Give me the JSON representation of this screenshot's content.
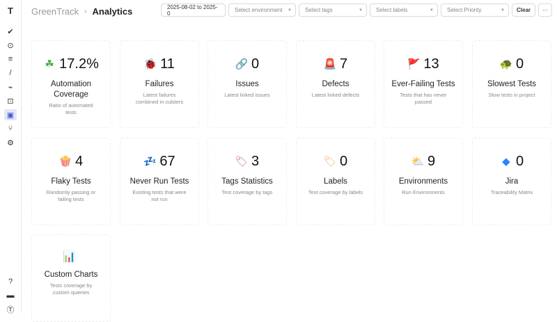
{
  "header": {
    "app": "GreenTrack",
    "page": "Analytics"
  },
  "filters": {
    "date": "2025-08-02 to 2025-0",
    "environment": "Select environment",
    "tags": "Select tags",
    "labels": "Select labels",
    "priority": "Select Priority",
    "clear": "Clear",
    "more": "···"
  },
  "sidebar": [
    "logo-icon",
    "check-icon",
    "play-icon",
    "list-check-icon",
    "pen-icon",
    "pulse-icon",
    "import-icon",
    "analytics-icon",
    "branch-icon",
    "gear-icon",
    "help-icon",
    "folder-icon",
    "account-icon"
  ],
  "cards": [
    {
      "icon": "clover-icon",
      "glyph": "☘",
      "color": "#3cb043",
      "value": "17.2%",
      "title": "Automation Coverage",
      "desc": "Ratio of automated tests"
    },
    {
      "icon": "bug-icon",
      "glyph": "🐞",
      "color": "#c0392b",
      "value": "11",
      "title": "Failures",
      "desc": "Latest failures combined in culsters"
    },
    {
      "icon": "link-icon",
      "glyph": "🔗",
      "color": "#777",
      "value": "0",
      "title": "Issues",
      "desc": "Latest linked issues"
    },
    {
      "icon": "siren-icon",
      "glyph": "🚨",
      "color": "#e53935",
      "value": "7",
      "title": "Defects",
      "desc": "Latest linked defects"
    },
    {
      "icon": "flag-icon",
      "glyph": "🚩",
      "color": "#e53935",
      "value": "13",
      "title": "Ever-Failing Tests",
      "desc": "Tests that has never passed"
    },
    {
      "icon": "turtle-icon",
      "glyph": "🐢",
      "color": "#2e7d32",
      "value": "0",
      "title": "Slowest Tests",
      "desc": "Slow tests in project"
    },
    {
      "icon": "popcorn-icon",
      "glyph": "🍿",
      "color": "#d32f2f",
      "value": "4",
      "title": "Flaky Tests",
      "desc": "Randomly passing or failing tests"
    },
    {
      "icon": "sleep-icon",
      "glyph": "💤",
      "color": "#1e63c9",
      "value": "67",
      "title": "Never Run Tests",
      "desc": "Existing tests that were not run"
    },
    {
      "icon": "tag-icon",
      "glyph": "🏷",
      "color": "#c97a7a",
      "value": "3",
      "title": "Tags Statistics",
      "desc": "Test coverage by tags"
    },
    {
      "icon": "label-icon",
      "glyph": "🏷",
      "color": "#e8b86b",
      "value": "0",
      "title": "Labels",
      "desc": "Test coverage by labels"
    },
    {
      "icon": "weather-icon",
      "glyph": "⛅",
      "color": "#f2b600",
      "value": "9",
      "title": "Environments",
      "desc": "Run Environments"
    },
    {
      "icon": "jira-icon",
      "glyph": "◆",
      "color": "#2684ff",
      "value": "0",
      "title": "Jira",
      "desc": "Traceability Matrix"
    },
    {
      "icon": "bar-chart-icon",
      "glyph": "📊",
      "color": "#2e7d32",
      "value": "",
      "title": "Custom Charts",
      "desc": "Tests coverage by custom quieries"
    }
  ]
}
